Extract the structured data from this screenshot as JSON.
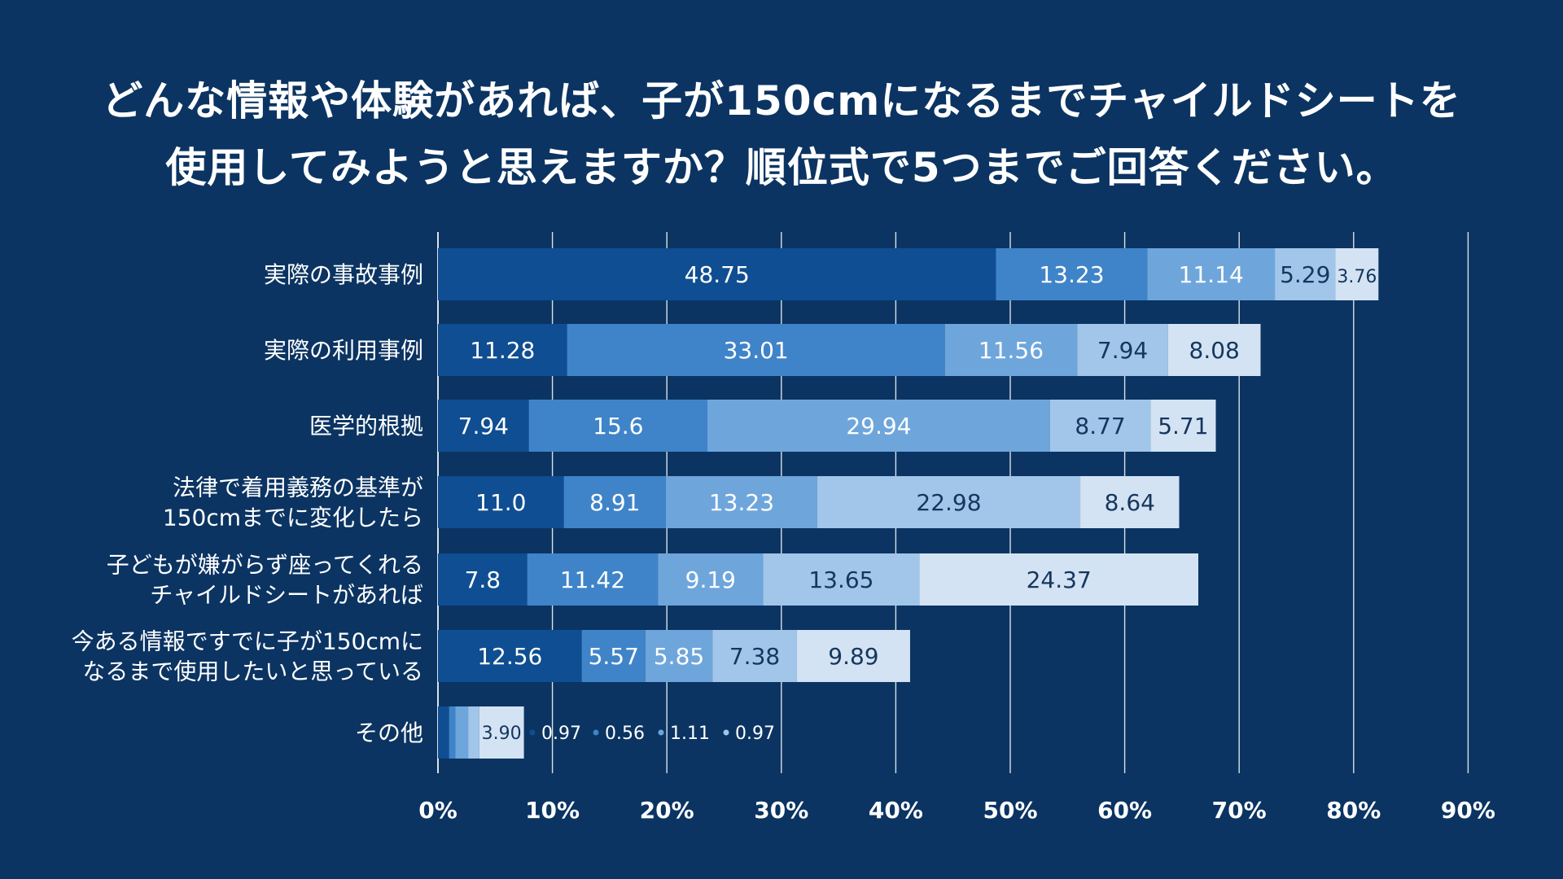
{
  "chart_data": {
    "type": "bar",
    "orientation": "horizontal",
    "stacked": true,
    "title_lines": [
      "どんな情報や体験があれば、子が150cmになるまでチャイルドシートを",
      "使用してみようと思えますか？順位式で5つまでご回答ください。"
    ],
    "categories": [
      [
        "実際の事故事例"
      ],
      [
        "実際の利用事例"
      ],
      [
        "医学的根拠"
      ],
      [
        "法律で着用義務の基準が",
        "150cmまでに変化したら"
      ],
      [
        "子どもが嫌がらず座ってくれる",
        "チャイルドシートがあれば"
      ],
      [
        "今ある情報ですでに子が150cmに",
        "なるまで使用したいと思っている"
      ],
      [
        "その他"
      ]
    ],
    "series": [
      {
        "color": "#0f4e92",
        "values": [
          48.75,
          11.28,
          7.94,
          11.0,
          7.8,
          12.56,
          0.97
        ]
      },
      {
        "color": "#3f84c9",
        "values": [
          13.23,
          33.01,
          15.6,
          8.91,
          11.42,
          5.57,
          0.56
        ]
      },
      {
        "color": "#6ea6dc",
        "values": [
          11.14,
          11.56,
          29.94,
          13.23,
          9.19,
          5.85,
          1.11
        ]
      },
      {
        "color": "#a1c6ea",
        "values": [
          5.29,
          7.94,
          8.77,
          22.98,
          13.65,
          7.38,
          0.97
        ]
      },
      {
        "color": "#d3e3f4",
        "values": [
          3.76,
          8.08,
          5.71,
          8.64,
          24.37,
          9.89,
          3.9
        ]
      }
    ],
    "data_labels": [
      [
        "48.75",
        "13.23",
        "11.14",
        "5.29",
        "3.76"
      ],
      [
        "11.28",
        "33.01",
        "11.56",
        "7.94",
        "8.08"
      ],
      [
        "7.94",
        "15.6",
        "29.94",
        "8.77",
        "5.71"
      ],
      [
        "11.0",
        "8.91",
        "13.23",
        "22.98",
        "8.64"
      ],
      [
        "7.8",
        "11.42",
        "9.19",
        "13.65",
        "24.37"
      ],
      [
        "12.56",
        "5.57",
        "5.85",
        "7.38",
        "9.89"
      ],
      [
        "0.97",
        "0.56",
        "1.11",
        "0.97",
        "3.90"
      ]
    ],
    "x_ticks": [
      "0%",
      "10%",
      "20%",
      "30%",
      "40%",
      "50%",
      "60%",
      "70%",
      "80%",
      "90%"
    ],
    "xlim": [
      0,
      90
    ],
    "grid": true,
    "legend": "none"
  }
}
